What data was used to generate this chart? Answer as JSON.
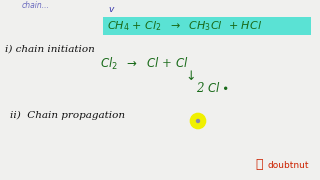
{
  "bg_color": "#f0f0ee",
  "highlight_color": "#40e0d0",
  "blue_color": "#3333aa",
  "dark_green": "#1a6b1a",
  "black_color": "#111111",
  "top_partial": "chain...",
  "top_label": "v",
  "top_eq": "CH₄ + Cl₂  →  CH₃Cl  + HCl",
  "s1_label": "i) chain initiation",
  "s1_eq1": "Cl₂  →  Cl + Cl",
  "s1_eq2": "↓  2 Cl•",
  "s2_label": "ii) Chain propagation",
  "yellow_circle_color": "#f0f000",
  "yellow_dot_color": "#8888aa",
  "doubtnut_color": "#cc2200",
  "doubtnut_text": "doubtnut"
}
